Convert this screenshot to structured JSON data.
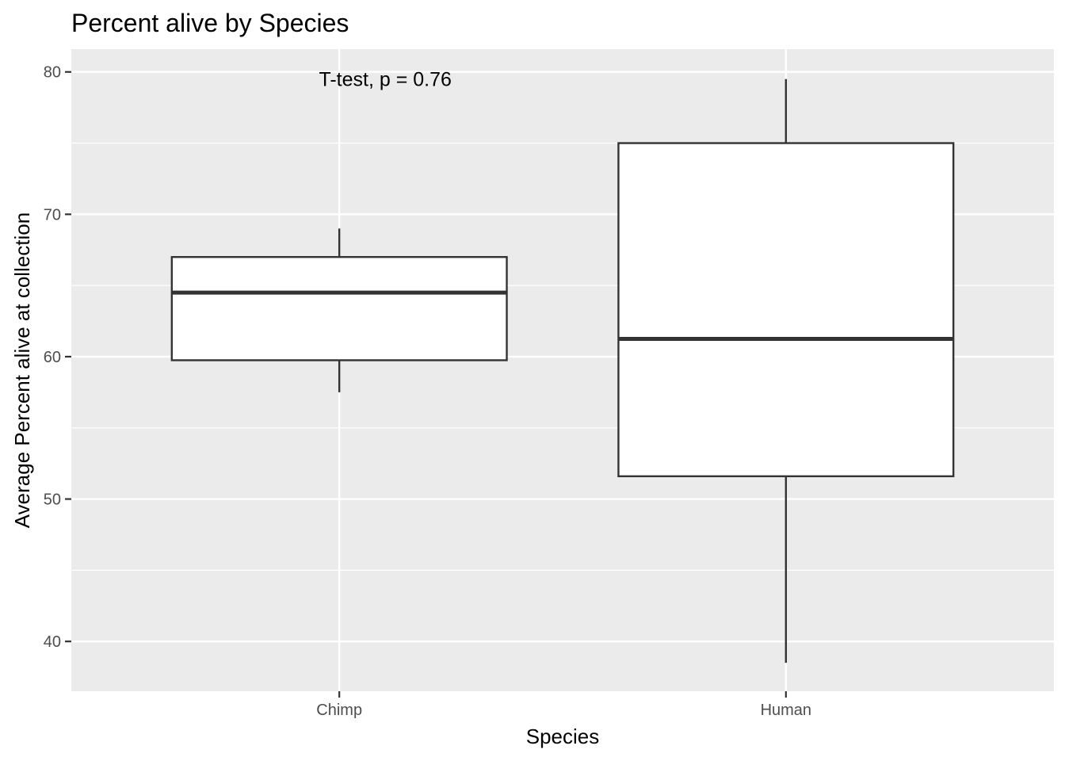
{
  "chart_data": {
    "type": "boxplot",
    "title": "Percent alive by Species",
    "xlabel": "Species",
    "ylabel": "Average Percent alive at collection",
    "ylim": [
      36.5,
      81.6
    ],
    "yticks": [
      40,
      50,
      60,
      70,
      80
    ],
    "y_minor_ticks": [
      45,
      55,
      65,
      75
    ],
    "grid": true,
    "categories": [
      "Chimp",
      "Human"
    ],
    "boxes": [
      {
        "category": "Chimp",
        "whisker_low": 57.5,
        "q1": 59.75,
        "median": 64.5,
        "q3": 67,
        "whisker_high": 69
      },
      {
        "category": "Human",
        "whisker_low": 38.5,
        "q1": 51.6,
        "median": 61.25,
        "q3": 75,
        "whisker_high": 79.5
      }
    ],
    "annotation": {
      "text": "T-test, p = 0.76",
      "x_category": "Chimp",
      "y": 80
    },
    "colors": {
      "panel": "#ebebeb",
      "grid": "#ffffff",
      "box_fill": "#ffffff",
      "box_stroke": "#333333",
      "tick_text": "#4d4d4d",
      "tick_mark": "#333333"
    }
  }
}
